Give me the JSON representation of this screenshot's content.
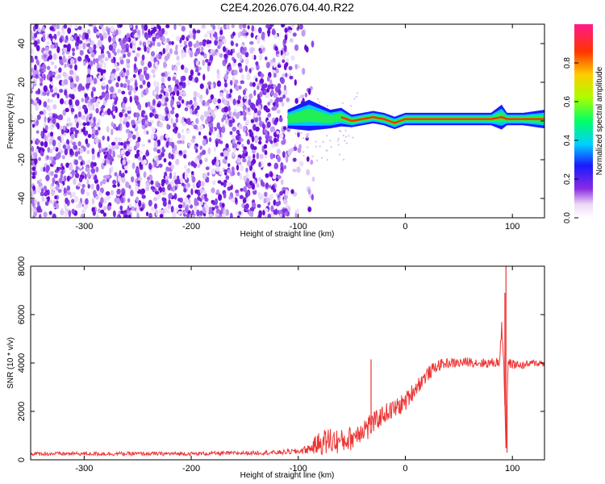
{
  "title": "C2E4.2026.076.04.40.R22",
  "chart_data": [
    {
      "type": "heatmap",
      "xlabel": "Height of straight line (km)",
      "ylabel": "Frequency (Hz)",
      "xlim": [
        -350,
        130
      ],
      "ylim": [
        -50,
        50
      ],
      "xticks": [
        -300,
        -200,
        -100,
        0,
        100
      ],
      "yticks": [
        -40,
        -20,
        0,
        20,
        40
      ],
      "noise_region_x": [
        -350,
        -100
      ],
      "carrier_band": {
        "x": [
          -110,
          -100,
          -90,
          -80,
          -70,
          -60,
          -50,
          -40,
          -30,
          -20,
          -10,
          0,
          20,
          40,
          60,
          80,
          90,
          95,
          110,
          130
        ],
        "center_hz": [
          1,
          2,
          3,
          2,
          1,
          2,
          0,
          1,
          2,
          1,
          -1,
          1,
          1,
          1,
          1,
          1,
          2,
          1,
          1,
          1
        ],
        "half_width_hz": [
          3,
          4,
          5,
          4,
          3,
          3,
          2,
          2,
          2,
          2,
          2,
          2,
          2,
          2,
          2,
          2,
          4,
          2,
          2,
          3
        ]
      },
      "colorbar": {
        "label": "Normalized spectral amplitude",
        "range": [
          0,
          1
        ],
        "ticks": [
          "0.0",
          "0.2",
          "0.4",
          "0.6",
          "0.8"
        ]
      }
    },
    {
      "type": "line",
      "xlabel": "Height of straight line (km)",
      "ylabel": "SNR (10 * v/v)",
      "xlim": [
        -350,
        130
      ],
      "ylim": [
        0,
        8000
      ],
      "xticks": [
        -300,
        -200,
        -100,
        0,
        100
      ],
      "yticks": [
        0,
        2000,
        4000,
        6000,
        8000
      ],
      "color": "#ee3333",
      "x": [
        -350,
        -300,
        -250,
        -200,
        -150,
        -120,
        -100,
        -90,
        -80,
        -70,
        -60,
        -50,
        -40,
        -35,
        -30,
        -20,
        -10,
        0,
        10,
        20,
        30,
        40,
        50,
        60,
        70,
        80,
        88,
        90,
        92,
        94,
        96,
        100,
        110,
        120,
        130
      ],
      "y": [
        250,
        250,
        250,
        250,
        280,
        300,
        350,
        450,
        700,
        800,
        750,
        900,
        1300,
        1350,
        1500,
        1900,
        2100,
        2400,
        3000,
        3500,
        3900,
        4000,
        4000,
        4050,
        4000,
        4000,
        4050,
        5500,
        4000,
        500,
        4000,
        3950,
        3900,
        4000,
        4000
      ],
      "noise": [
        80,
        80,
        80,
        80,
        80,
        90,
        120,
        200,
        500,
        600,
        500,
        500,
        500,
        600,
        450,
        400,
        400,
        400,
        350,
        300,
        250,
        200,
        200,
        200,
        200,
        200,
        200,
        200,
        200,
        200,
        200,
        200,
        150,
        150,
        150
      ],
      "spikes": [
        {
          "x": -32,
          "y": 4150
        },
        {
          "x": 94,
          "y": 8000
        },
        {
          "x": 93,
          "y": 6900
        },
        {
          "x": 95,
          "y": 300
        }
      ]
    }
  ]
}
